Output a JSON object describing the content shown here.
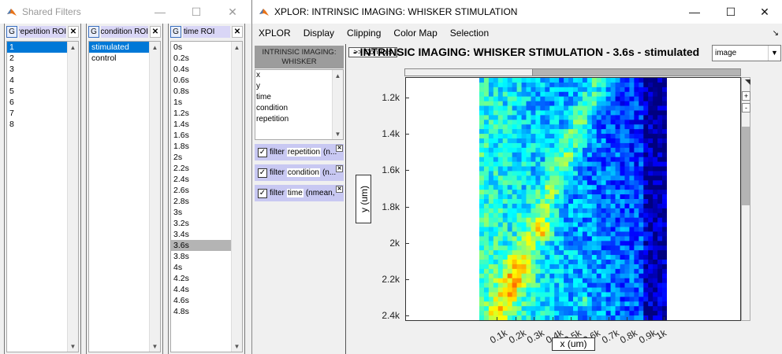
{
  "shared_window": {
    "title": "Shared Filters",
    "minimize": "—",
    "maximize": "☐",
    "close": "✕",
    "filters": [
      {
        "g": "G",
        "title": "repetition ROI",
        "close": "✕",
        "items": [
          "1",
          "2",
          "3",
          "4",
          "5",
          "6",
          "7",
          "8"
        ],
        "selected": 0
      },
      {
        "g": "G",
        "title": "condition ROI",
        "close": "✕",
        "items": [
          "stimulated",
          "control"
        ],
        "selected": 0
      },
      {
        "g": "G",
        "title": "time ROI",
        "close": "✕",
        "items": [
          "0s",
          "0.2s",
          "0.4s",
          "0.6s",
          "0.8s",
          "1s",
          "1.2s",
          "1.4s",
          "1.6s",
          "1.8s",
          "2s",
          "2.2s",
          "2.4s",
          "2.6s",
          "2.8s",
          "3s",
          "3.2s",
          "3.4s",
          "3.6s",
          "3.8s",
          "4s",
          "4.2s",
          "4.4s",
          "4.6s",
          "4.8s"
        ],
        "highlighted": 18
      }
    ]
  },
  "main_window": {
    "title": "XPLOR: INTRINSIC IMAGING: WHISKER STIMULATION",
    "minimize": "—",
    "maximize": "☐",
    "close": "✕",
    "menus": [
      "XPLOR",
      "Display",
      "Clipping",
      "Color Map",
      "Selection"
    ],
    "menu_arrow": "↘",
    "panel_header": "INTRINSIC IMAGING: WHISKER",
    "variables": [
      "x",
      "y",
      "time",
      "condition",
      "repetition"
    ],
    "filter_rows": [
      {
        "check": "✓",
        "word": "filter",
        "name": "repetition",
        "rest": "(n...",
        "close": "✕"
      },
      {
        "check": "✓",
        "word": "filter",
        "name": "condition",
        "rest": "(n...",
        "close": "✕"
      },
      {
        "check": "✓",
        "word": "filter",
        "name": "time",
        "rest": "(nmean,",
        "close": "✕"
      }
    ],
    "controls_button": ">> Controls",
    "plot_title": "INTRINSIC IMAGING: WHISKER STIMULATION - 3.6s - stimulated -",
    "display_mode": "image",
    "dropdown_arrow": "▼",
    "zoom_in": "+",
    "zoom_out": "-"
  },
  "chart_data": {
    "type": "heatmap",
    "xlabel": "x (um)",
    "ylabel": "y (um)",
    "x_ticks": [
      "0.1k",
      "0.2k",
      "0.3k",
      "0.4k",
      "0.5k",
      "0.6k",
      "0.7k",
      "0.8k",
      "0.9k",
      "1k"
    ],
    "y_ticks": [
      "1.2k",
      "1.4k",
      "1.6k",
      "1.8k",
      "2k",
      "2.2k",
      "2.4k"
    ],
    "colormap": "jet",
    "grid": false
  }
}
